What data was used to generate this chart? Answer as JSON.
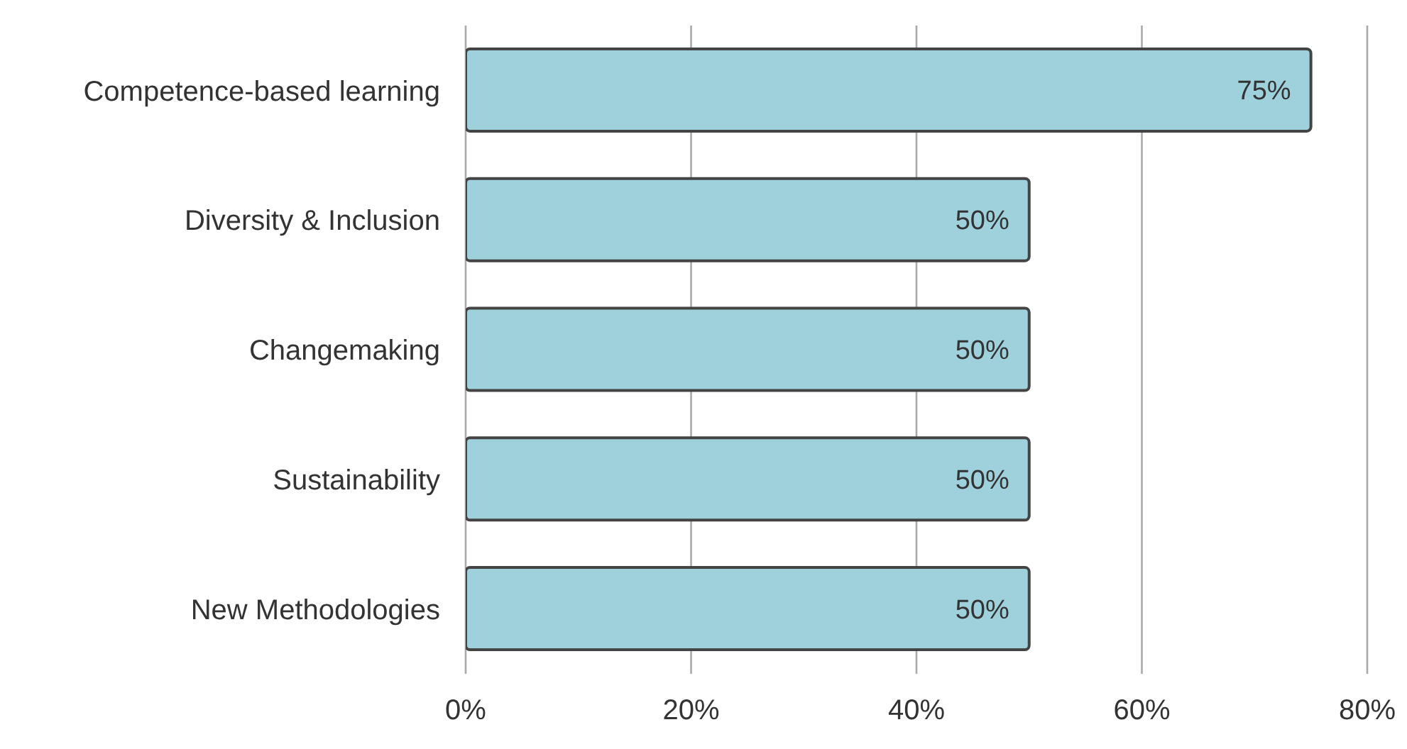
{
  "chart_data": {
    "type": "bar",
    "orientation": "horizontal",
    "categories": [
      "Competence-based learning",
      "Diversity & Inclusion",
      "Changemaking",
      "Sustainability",
      "New Methodologies"
    ],
    "values": [
      75,
      50,
      50,
      50,
      50
    ],
    "value_labels": [
      "75%",
      "50%",
      "50%",
      "50%",
      "50%"
    ],
    "color": "#9fd1dc",
    "xlim": [
      0,
      80
    ],
    "xticks": [
      {
        "value": 0,
        "label": "0%"
      },
      {
        "value": 20,
        "label": "20%"
      },
      {
        "value": 40,
        "label": "40%"
      },
      {
        "value": 60,
        "label": "60%"
      },
      {
        "value": 80,
        "label": "80%"
      }
    ],
    "grid": "x"
  }
}
